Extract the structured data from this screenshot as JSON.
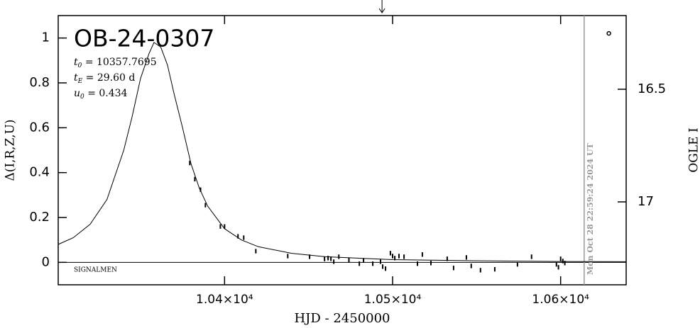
{
  "chart_data": {
    "type": "line",
    "title": "OB-24-0307",
    "params": [
      {
        "symbol": "t",
        "sub": "0",
        "text": " = 10357.7695"
      },
      {
        "symbol": "t",
        "sub": "E",
        "text": " = 29.60  d"
      },
      {
        "symbol": "u",
        "sub": "0",
        "text": " = 0.434"
      }
    ],
    "x_label": "HJD  -  2450000",
    "y_label": "Δ(I,R,Z,U)",
    "y2_label": "OGLE I",
    "note": "SIGNALMEN",
    "timestamp": {
      "x": 10614,
      "label": "Mon Oct 28 22:59:24 2024 UT"
    },
    "arrow_x": 10493.7,
    "xlim": [
      10301,
      10639
    ],
    "ylim": [
      -0.1,
      1.1
    ],
    "y2lim": [
      17.368,
      16.173
    ],
    "xticks": [
      {
        "value": 10400,
        "label": "1.04×10⁴"
      },
      {
        "value": 10500,
        "label": "1.05×10⁴"
      },
      {
        "value": 10600,
        "label": "1.06×10⁴"
      }
    ],
    "yticks": [
      0,
      0.2,
      0.4,
      0.6,
      0.8,
      1
    ],
    "y2ticks": [
      16.5,
      17
    ],
    "series": [
      {
        "kind": "model",
        "color": "#000000",
        "x": [
          10301,
          10310,
          10320,
          10330,
          10340,
          10345,
          10350,
          10355,
          10358,
          10362,
          10366,
          10370,
          10375,
          10380,
          10385,
          10390,
          10400,
          10410,
          10420,
          10440,
          10460,
          10500,
          10550,
          10600,
          10639
        ],
        "values": [
          0.08,
          0.11,
          0.17,
          0.28,
          0.5,
          0.65,
          0.82,
          0.93,
          0.98,
          0.96,
          0.88,
          0.75,
          0.6,
          0.44,
          0.33,
          0.25,
          0.15,
          0.1,
          0.07,
          0.04,
          0.025,
          0.012,
          0.007,
          0.004,
          0.003
        ]
      },
      {
        "kind": "points",
        "color": "#000000",
        "x": [
          10379.3,
          10382.3,
          10385.7,
          10388.6,
          10397.5,
          10400,
          10408,
          10411.4,
          10418.6,
          10437.6,
          10450.6,
          10459.5,
          10461.6,
          10463.3,
          10465,
          10468,
          10474,
          10480.2,
          10482.7,
          10488.2,
          10492.8,
          10494.1,
          10495.8,
          10498.7,
          10500,
          10501.3,
          10503.8,
          10506.8,
          10514.8,
          10517.7,
          10522.8,
          10532.5,
          10536.3,
          10543.9,
          10546.8,
          10552.3,
          10560.8,
          10574.3,
          10582.7,
          10597.5,
          10598.7,
          10600,
          10601.3,
          10602.5
        ],
        "values": [
          0.443,
          0.371,
          0.324,
          0.255,
          0.16,
          0.16,
          0.116,
          0.11,
          0.05,
          0.028,
          0.025,
          0.015,
          0.019,
          0.016,
          0.003,
          0.025,
          0.01,
          -0.006,
          0.009,
          -0.006,
          0.003,
          -0.019,
          -0.028,
          0.041,
          0.028,
          0.019,
          0.028,
          0.025,
          -0.006,
          0.035,
          -0.003,
          0.016,
          -0.025,
          0.022,
          -0.016,
          -0.035,
          -0.031,
          -0.009,
          0.025,
          -0.009,
          -0.022,
          0.016,
          0.006,
          -0.003
        ],
        "errors": [
          0.01,
          0.01,
          0.01,
          0.01,
          0.01,
          0.01,
          0.01,
          0.01,
          0.01,
          0.01,
          0.01,
          0.01,
          0.01,
          0.01,
          0.01,
          0.01,
          0.01,
          0.01,
          0.01,
          0.01,
          0.01,
          0.01,
          0.01,
          0.01,
          0.01,
          0.01,
          0.01,
          0.01,
          0.01,
          0.01,
          0.01,
          0.01,
          0.01,
          0.01,
          0.01,
          0.01,
          0.01,
          0.01,
          0.01,
          0.01,
          0.01,
          0.01,
          0.01,
          0.01
        ]
      },
      {
        "kind": "circle",
        "axis": "y2",
        "color": "#000000",
        "x": [
          10628.7
        ],
        "values": [
          16.252
        ]
      }
    ]
  }
}
